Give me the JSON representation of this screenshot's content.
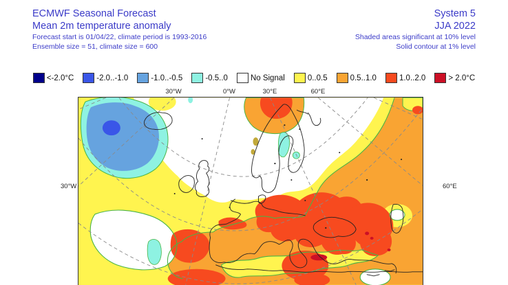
{
  "header": {
    "title": "ECMWF Seasonal Forecast",
    "subtitle": "Mean 2m temperature anomaly",
    "forecast_info": "Forecast start is 01/04/22, climate period is 1993-2016",
    "ensemble_info": "Ensemble size = 51, climate size = 600",
    "system": "System 5",
    "season": "JJA 2022",
    "significance_note": "Shaded areas significant at 10% level",
    "contour_note": "Solid contour at 1% level",
    "text_color": "#3b3bc8"
  },
  "legend": {
    "items": [
      {
        "label": "<-2.0°C",
        "color": "#00008B"
      },
      {
        "label": "-2.0..-1.0",
        "color": "#3A56E8"
      },
      {
        "label": "-1.0..-0.5",
        "color": "#66A3DF"
      },
      {
        "label": "-0.5..0",
        "color": "#8EF2E2"
      },
      {
        "label": "No Signal",
        "color": "#FFFFFF"
      },
      {
        "label": "0..0.5",
        "color": "#FFF44F"
      },
      {
        "label": "0.5..1.0",
        "color": "#F9A433"
      },
      {
        "label": "1.0..2.0",
        "color": "#F74A1F"
      },
      {
        "label": "> 2.0°C",
        "color": "#CC1026"
      }
    ]
  },
  "map": {
    "top_labels": [
      "30°W",
      "0°W",
      "30°E",
      "60°E"
    ],
    "left_label": "30°W",
    "right_label": "60°E",
    "contour_color": "#49B446",
    "coast_color": "#222222",
    "graticule_color": "#8a8a8a"
  }
}
